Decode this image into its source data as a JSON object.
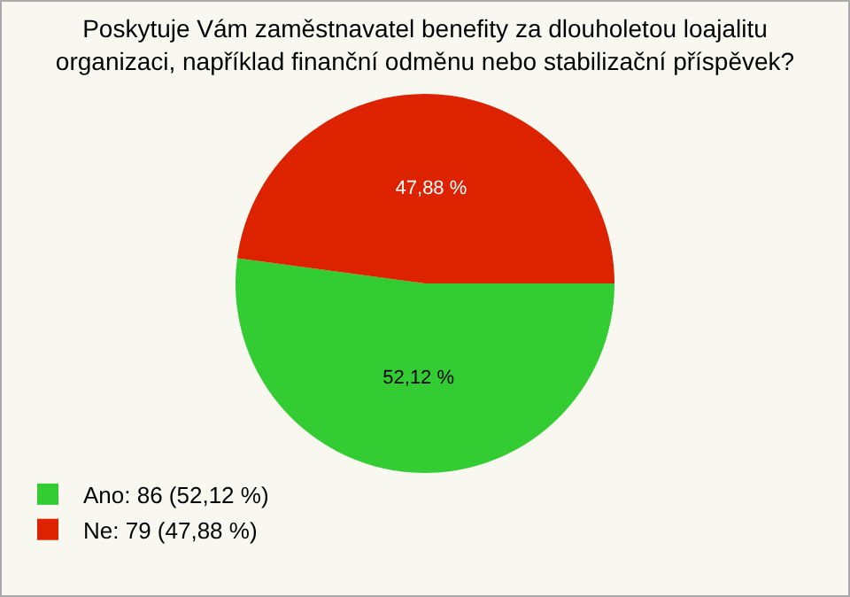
{
  "chart_data": {
    "type": "pie",
    "title": "Poskytuje Vám zaměstnavatel benefity za dlouholetou loajalitu\norganizaci, například finanční odměnu nebo stabilizační příspěvek?",
    "categories": [
      "Ano: 86 (52,12 %)",
      "Ne: 79 (47,88 %)"
    ],
    "values": [
      52.12,
      47.88
    ],
    "value_labels": [
      "52,12 %",
      "47,88 %"
    ],
    "colors": [
      "#33cc33",
      "#dd2200"
    ],
    "legend": "bottom left"
  }
}
